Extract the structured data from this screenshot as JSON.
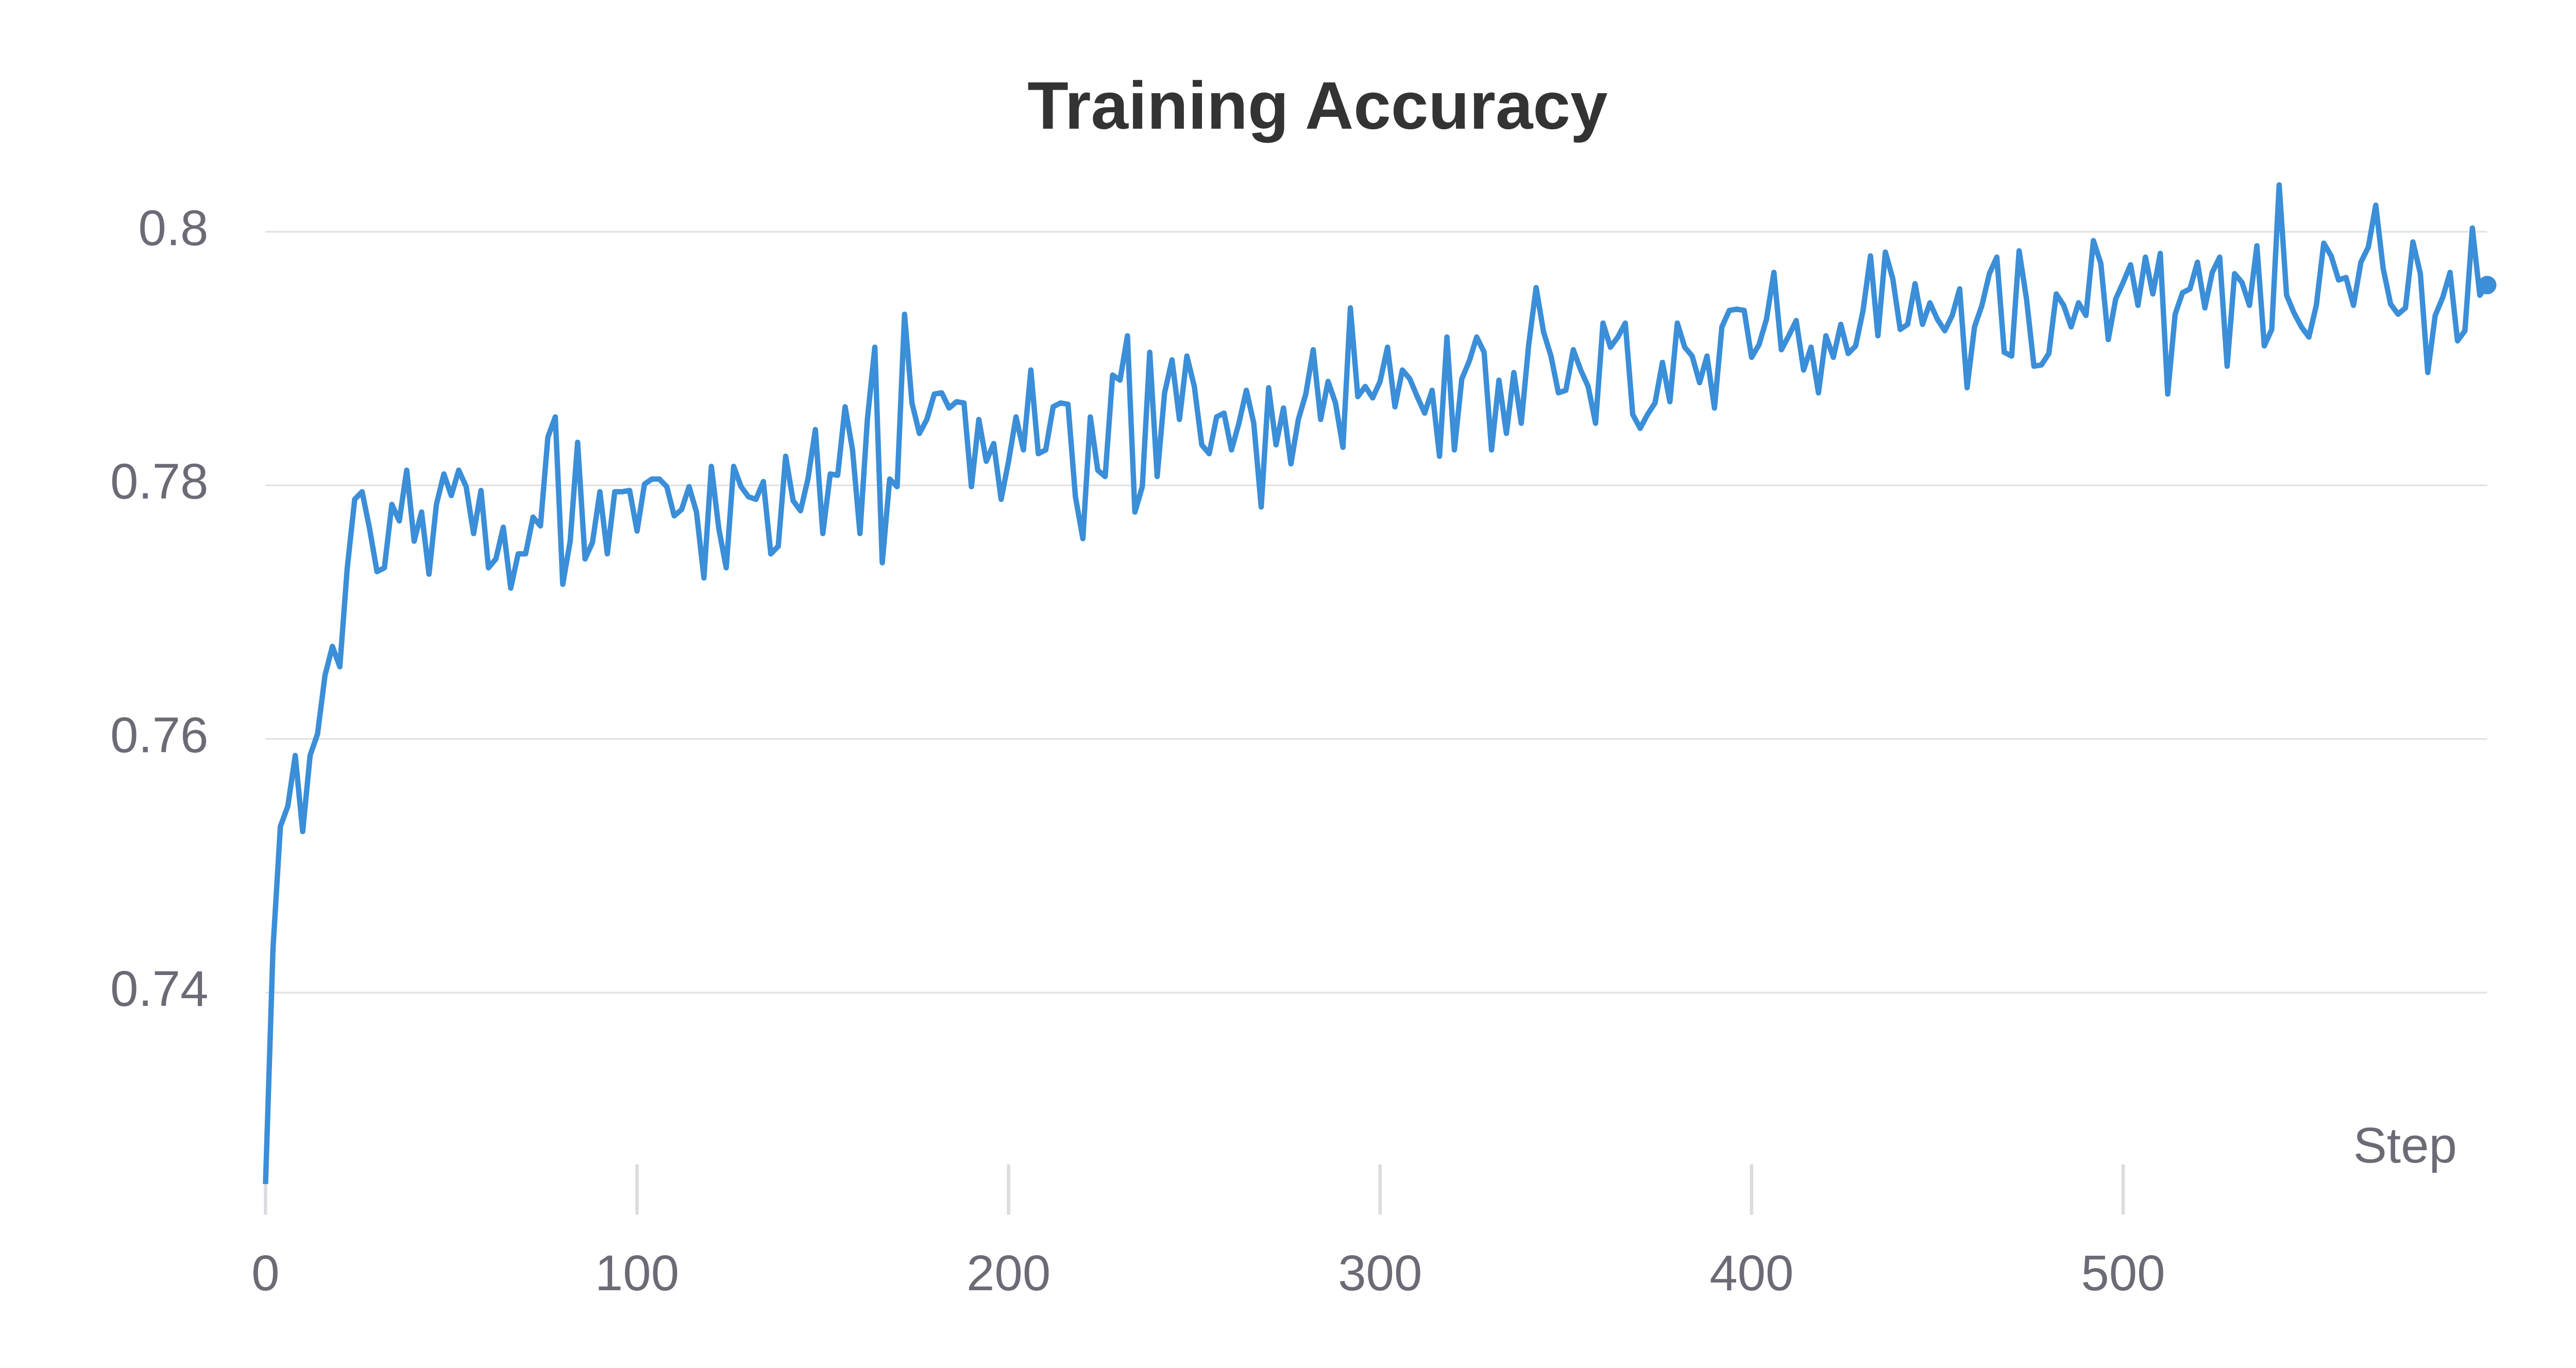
{
  "chart_data": {
    "type": "line",
    "title": "Training Accuracy",
    "xlabel": "Step",
    "color": "#3b8ed8",
    "grid": true,
    "xlim": [
      0,
      598
    ],
    "xticks": [
      0,
      100,
      200,
      300,
      400,
      500
    ],
    "ylim": [
      0.7242,
      0.8043
    ],
    "yticks": [
      0.74,
      0.76,
      0.78,
      0.8
    ],
    "x": [
      0,
      2,
      4,
      6,
      8,
      10,
      12,
      14,
      16,
      18,
      20,
      22,
      24,
      26,
      28,
      30,
      32,
      34,
      36,
      38,
      40,
      42,
      44,
      46,
      48,
      50,
      52,
      54,
      56,
      58,
      60,
      62,
      64,
      66,
      68,
      70,
      72,
      74,
      76,
      78,
      80,
      82,
      84,
      86,
      88,
      90,
      92,
      94,
      96,
      98,
      100,
      102,
      104,
      106,
      108,
      110,
      112,
      114,
      116,
      118,
      120,
      122,
      124,
      126,
      128,
      130,
      132,
      134,
      136,
      138,
      140,
      142,
      144,
      146,
      148,
      150,
      152,
      154,
      156,
      158,
      160,
      162,
      164,
      166,
      168,
      170,
      172,
      174,
      176,
      178,
      180,
      182,
      184,
      186,
      188,
      190,
      192,
      194,
      196,
      198,
      200,
      202,
      204,
      206,
      208,
      210,
      212,
      214,
      216,
      218,
      220,
      222,
      224,
      226,
      228,
      230,
      232,
      234,
      236,
      238,
      240,
      242,
      244,
      246,
      248,
      250,
      252,
      254,
      256,
      258,
      260,
      262,
      264,
      266,
      268,
      270,
      272,
      274,
      276,
      278,
      280,
      282,
      284,
      286,
      288,
      290,
      292,
      294,
      296,
      298,
      300,
      302,
      304,
      306,
      308,
      310,
      312,
      314,
      316,
      318,
      320,
      322,
      324,
      326,
      328,
      330,
      332,
      334,
      336,
      338,
      340,
      342,
      344,
      346,
      348,
      350,
      352,
      354,
      356,
      358,
      360,
      362,
      364,
      366,
      368,
      370,
      372,
      374,
      376,
      378,
      380,
      382,
      384,
      386,
      388,
      390,
      392,
      394,
      396,
      398,
      400,
      402,
      404,
      406,
      408,
      410,
      412,
      414,
      416,
      418,
      420,
      422,
      424,
      426,
      428,
      430,
      432,
      434,
      436,
      438,
      440,
      442,
      444,
      446,
      448,
      450,
      452,
      454,
      456,
      458,
      460,
      462,
      464,
      466,
      468,
      470,
      472,
      474,
      476,
      478,
      480,
      482,
      484,
      486,
      488,
      490,
      492,
      494,
      496,
      498,
      500,
      502,
      504,
      506,
      508,
      510,
      512,
      514,
      516,
      518,
      520,
      522,
      524,
      526,
      528,
      530,
      532,
      534,
      536,
      538,
      540,
      542,
      544,
      546,
      548,
      550,
      552,
      554,
      556,
      558,
      560,
      562,
      564,
      566,
      568,
      570,
      572,
      574,
      576,
      578,
      580,
      582,
      584,
      586,
      588,
      590,
      592,
      594,
      596,
      598
    ],
    "values": [
      0.7249,
      0.7434,
      0.7531,
      0.7547,
      0.7587,
      0.7527,
      0.7587,
      0.7604,
      0.765,
      0.7673,
      0.7657,
      0.7735,
      0.7789,
      0.7795,
      0.7766,
      0.7732,
      0.7735,
      0.7785,
      0.7772,
      0.7812,
      0.7756,
      0.7779,
      0.773,
      0.7785,
      0.7809,
      0.7792,
      0.7812,
      0.7799,
      0.7762,
      0.7796,
      0.7735,
      0.7742,
      0.7767,
      0.7719,
      0.7746,
      0.7746,
      0.7775,
      0.7768,
      0.7838,
      0.7854,
      0.7722,
      0.7756,
      0.7834,
      0.7742,
      0.7755,
      0.7795,
      0.7746,
      0.7795,
      0.7795,
      0.7796,
      0.7764,
      0.7801,
      0.7805,
      0.7805,
      0.7799,
      0.7776,
      0.7781,
      0.7799,
      0.7779,
      0.7727,
      0.7815,
      0.7766,
      0.7735,
      0.7815,
      0.7799,
      0.7791,
      0.7789,
      0.7803,
      0.7746,
      0.7752,
      0.7823,
      0.7788,
      0.778,
      0.7805,
      0.7844,
      0.7762,
      0.7809,
      0.7808,
      0.7862,
      0.7828,
      0.7762,
      0.7852,
      0.7909,
      0.7739,
      0.7805,
      0.7799,
      0.7935,
      0.7865,
      0.7841,
      0.7852,
      0.7872,
      0.7873,
      0.7861,
      0.7866,
      0.7865,
      0.7799,
      0.7852,
      0.7819,
      0.7833,
      0.7789,
      0.7819,
      0.7854,
      0.7828,
      0.7891,
      0.7825,
      0.7828,
      0.7862,
      0.7865,
      0.7864,
      0.7791,
      0.7758,
      0.7854,
      0.7812,
      0.7807,
      0.7887,
      0.7883,
      0.7918,
      0.7779,
      0.7799,
      0.7905,
      0.7807,
      0.7873,
      0.7899,
      0.7852,
      0.7902,
      0.7878,
      0.7832,
      0.7825,
      0.7854,
      0.7857,
      0.7828,
      0.7849,
      0.7875,
      0.7849,
      0.7783,
      0.7877,
      0.7832,
      0.7861,
      0.7817,
      0.7852,
      0.7872,
      0.7907,
      0.7852,
      0.7882,
      0.7865,
      0.783,
      0.794,
      0.787,
      0.7878,
      0.7869,
      0.7882,
      0.7909,
      0.7862,
      0.7891,
      0.7884,
      0.787,
      0.7857,
      0.7875,
      0.7823,
      0.7917,
      0.7828,
      0.7884,
      0.7898,
      0.7917,
      0.7905,
      0.7828,
      0.7883,
      0.7841,
      0.7889,
      0.7849,
      0.7911,
      0.7956,
      0.7921,
      0.7902,
      0.7873,
      0.7875,
      0.7907,
      0.7891,
      0.7878,
      0.7849,
      0.7928,
      0.7909,
      0.7917,
      0.7928,
      0.7856,
      0.7845,
      0.7856,
      0.7865,
      0.7897,
      0.7866,
      0.7928,
      0.7909,
      0.7902,
      0.7881,
      0.7902,
      0.7861,
      0.7925,
      0.7938,
      0.7939,
      0.7938,
      0.7901,
      0.7911,
      0.7931,
      0.7968,
      0.7907,
      0.7918,
      0.793,
      0.7891,
      0.7909,
      0.7873,
      0.7918,
      0.7901,
      0.7927,
      0.7904,
      0.791,
      0.7938,
      0.7981,
      0.7918,
      0.7984,
      0.7963,
      0.7923,
      0.7927,
      0.7959,
      0.7927,
      0.7944,
      0.7931,
      0.7922,
      0.7934,
      0.7955,
      0.7877,
      0.7925,
      0.7942,
      0.7967,
      0.798,
      0.7905,
      0.7902,
      0.7985,
      0.7947,
      0.7894,
      0.7895,
      0.7904,
      0.7951,
      0.7942,
      0.7925,
      0.7944,
      0.7934,
      0.7993,
      0.7975,
      0.7915,
      0.7947,
      0.796,
      0.7974,
      0.7942,
      0.798,
      0.7951,
      0.7983,
      0.7872,
      0.7935,
      0.7952,
      0.7955,
      0.7976,
      0.794,
      0.7968,
      0.798,
      0.7894,
      0.7967,
      0.796,
      0.7942,
      0.7989,
      0.791,
      0.7923,
      0.8037,
      0.795,
      0.7936,
      0.7925,
      0.7917,
      0.7942,
      0.7991,
      0.7981,
      0.7962,
      0.7964,
      0.7942,
      0.7976,
      0.7988,
      0.8021,
      0.7971,
      0.7943,
      0.7935,
      0.794,
      0.7992,
      0.7967,
      0.7889,
      0.7934,
      0.7948,
      0.7968,
      0.7914,
      0.7922,
      0.8003,
      0.795,
      0.7958
    ]
  }
}
